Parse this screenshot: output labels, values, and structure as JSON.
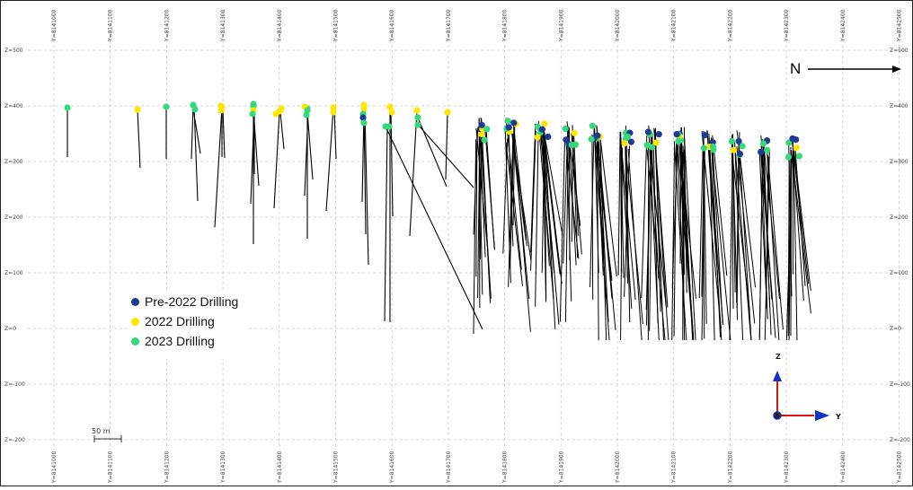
{
  "y_ticks": [
    "Y=8141000",
    "Y=8141100",
    "Y=8141200",
    "Y=8141300",
    "Y=8141400",
    "Y=8141500",
    "Y=8141600",
    "Y=8141700",
    "Y=8141800",
    "Y=8141900",
    "Y=8142000",
    "Y=8142100",
    "Y=8142200",
    "Y=8142300",
    "Y=8142400",
    "Y=8142500"
  ],
  "z_ticks": [
    "Z=500",
    "Z=400",
    "Z=300",
    "Z=200",
    "Z=100",
    "Z=0",
    "Z=-100",
    "Z=-200"
  ],
  "north_label": "N",
  "scale_label": "50 m",
  "axis_triad": {
    "z": "Z",
    "y": "Y"
  },
  "legend": [
    {
      "label": "Pre-2022 Drilling",
      "color": "#1f3a93"
    },
    {
      "label": "2022 Drilling",
      "color": "#ffe600"
    },
    {
      "label": "2023 Drilling",
      "color": "#34d97b"
    }
  ],
  "colors": {
    "pre2022": "#1f3a93",
    "d2022": "#ffe600",
    "d2023": "#34d97b",
    "grid": "#c8c8c8",
    "trace": "#000000"
  }
}
